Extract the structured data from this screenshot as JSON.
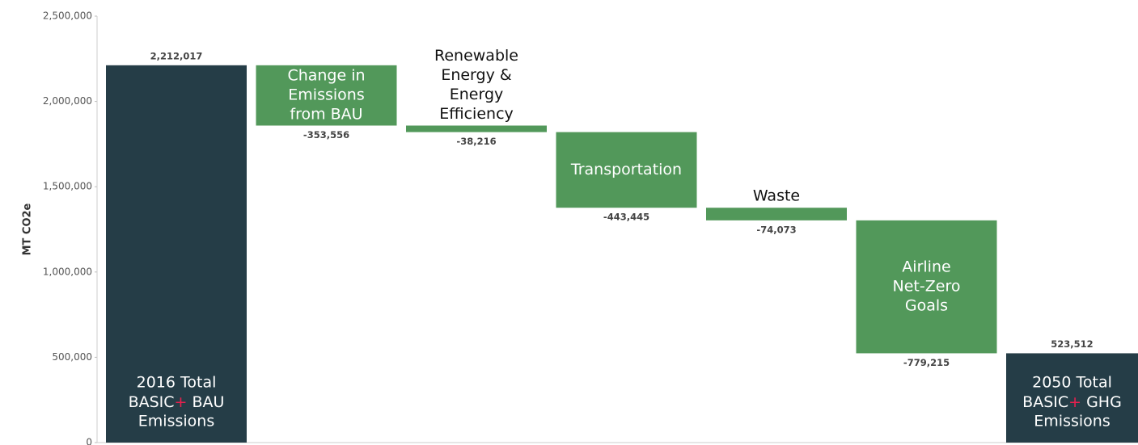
{
  "chart_data": {
    "type": "waterfall",
    "ylabel": "MT CO2e",
    "categories": [
      [
        "2016 Total",
        "BASIC+ BAU",
        "Emissions"
      ],
      [
        "Change in",
        "Emissions",
        "from BAU"
      ],
      [
        "Renewable",
        "Energy &",
        "Energy",
        "Efficiency"
      ],
      [
        "Transportation"
      ],
      [
        "Waste"
      ],
      [
        "Airline",
        "Net-Zero",
        "Goals"
      ],
      [
        "2050 Total",
        "BASIC+ GHG",
        "Emissions"
      ]
    ],
    "values": [
      2212017,
      -353556,
      -38216,
      -443445,
      -74073,
      -779215,
      523512
    ],
    "value_labels": [
      "2,212,017",
      "-353,556",
      "-38,216",
      "-443,445",
      "-74,073",
      "-779,215",
      "523,512"
    ],
    "total_color": "#253d47",
    "color": "#52985a",
    "accent_color": "#e8204e",
    "ylim": [
      0,
      2500000
    ],
    "yticks": [
      0,
      {
        "value": 500000,
        "label": "500,000"
      },
      {
        "value": 1000000,
        "label": "1,000,000"
      },
      {
        "value": 1500000,
        "label": "1,500,000"
      },
      {
        "value": 2000000,
        "label": "2,000,000"
      },
      {
        "value": 2500000,
        "label": "2,500,000"
      }
    ],
    "grid": false
  }
}
